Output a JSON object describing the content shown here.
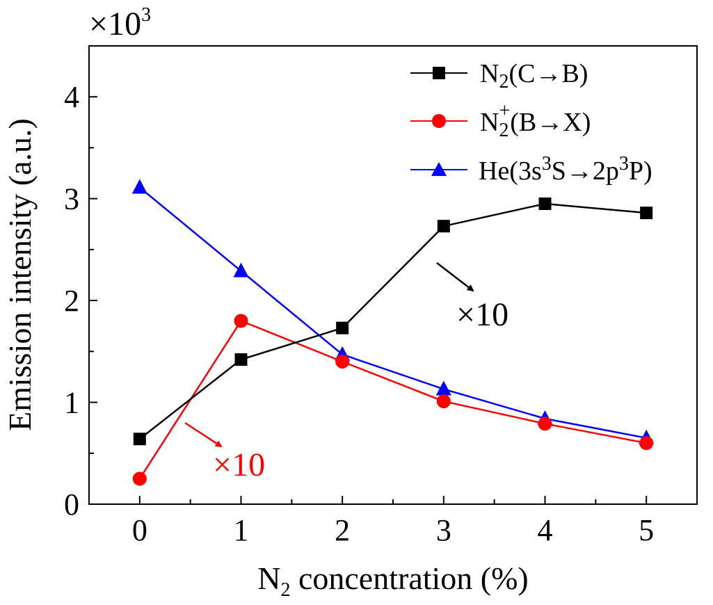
{
  "chart_data": {
    "type": "line",
    "title": "",
    "xlabel": "N2 concentration (%)",
    "ylabel": "Emission intensity (a.u.)",
    "y_multiplier": "×10",
    "y_multiplier_exp": "3",
    "x": [
      0,
      1,
      2,
      3,
      4,
      5
    ],
    "xlim": [
      -0.5,
      5.5
    ],
    "ylim": [
      0,
      4.5
    ],
    "x_ticks": [
      "0",
      "1",
      "2",
      "3",
      "4",
      "5"
    ],
    "y_ticks": [
      "0",
      "1",
      "2",
      "3",
      "4"
    ],
    "grid": false,
    "legend_position": "top-right",
    "series": [
      {
        "name": "N2(C→B)",
        "color": "#000000",
        "marker": "square",
        "values": [
          0.64,
          1.42,
          1.73,
          2.73,
          2.95,
          2.86
        ],
        "scale_note": "×10"
      },
      {
        "name": "N2+(B→X)",
        "color": "#ff0000",
        "marker": "circle",
        "values": [
          0.25,
          1.8,
          1.4,
          1.01,
          0.79,
          0.6
        ],
        "scale_note": "×10"
      },
      {
        "name": "He(3s3S→2p3P)",
        "color": "#0000ff",
        "marker": "triangle",
        "values": [
          3.11,
          2.29,
          1.47,
          1.13,
          0.84,
          0.65
        ]
      }
    ],
    "legend": {
      "n2cb": {
        "base": "N",
        "sub": "2",
        "rest": "(C→B)"
      },
      "n2bx": {
        "base": "N",
        "sub": "2",
        "sup": "+",
        "rest": "(B→X)"
      },
      "he": {
        "a": "He(3s",
        "sup1": "3",
        "b": "S→2p",
        "sup2": "3",
        "c": "P)"
      }
    },
    "annotations": {
      "black": "×10",
      "red": "×10"
    },
    "xlabel_parts": {
      "base": "N",
      "sub": "2",
      "rest": " concentration (%)"
    }
  }
}
